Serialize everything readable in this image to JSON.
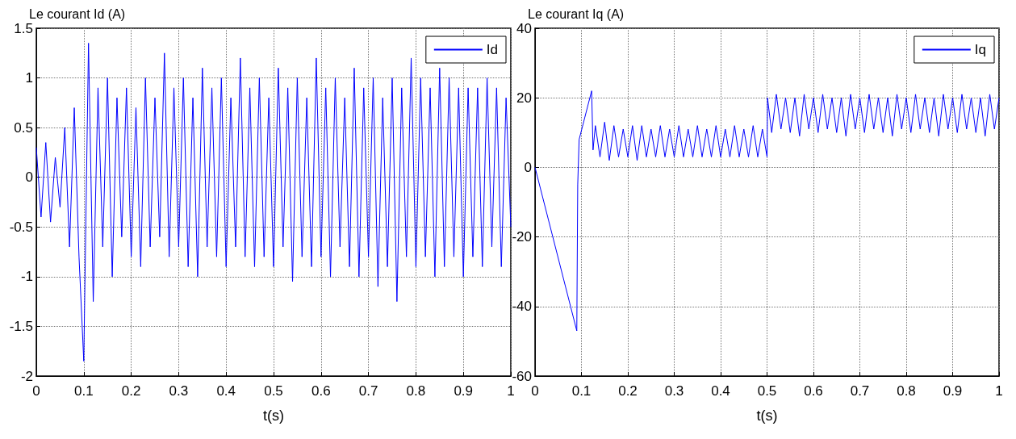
{
  "chart_data": [
    {
      "type": "line",
      "title": "Le courant Id (A)",
      "xlabel": "t(s)",
      "xlim": [
        0,
        1
      ],
      "xticks": [
        0,
        0.1,
        0.2,
        0.3,
        0.4,
        0.5,
        0.6,
        0.7,
        0.8,
        0.9,
        1
      ],
      "ylim": [
        -2,
        1.5
      ],
      "yticks": [
        -2,
        -1.5,
        -1,
        -0.5,
        0,
        0.5,
        1,
        1.5
      ],
      "grid": true,
      "legend": "top right",
      "marker": "none",
      "line_style": "solid",
      "series": [
        {
          "name": "Id",
          "color": "#0000ff",
          "x": [
            0,
            0.01,
            0.02,
            0.03,
            0.04,
            0.05,
            0.06,
            0.07,
            0.08,
            0.09,
            0.1,
            0.11,
            0.12,
            0.13,
            0.14,
            0.15,
            0.16,
            0.17,
            0.18,
            0.19,
            0.2,
            0.21,
            0.22,
            0.23,
            0.24,
            0.25,
            0.26,
            0.27,
            0.28,
            0.29,
            0.3,
            0.31,
            0.32,
            0.33,
            0.34,
            0.35,
            0.36,
            0.37,
            0.38,
            0.39,
            0.4,
            0.41,
            0.42,
            0.43,
            0.44,
            0.45,
            0.46,
            0.47,
            0.48,
            0.49,
            0.5,
            0.51,
            0.52,
            0.53,
            0.54,
            0.55,
            0.56,
            0.57,
            0.58,
            0.59,
            0.6,
            0.61,
            0.62,
            0.63,
            0.64,
            0.65,
            0.66,
            0.67,
            0.68,
            0.69,
            0.7,
            0.71,
            0.72,
            0.73,
            0.74,
            0.75,
            0.76,
            0.77,
            0.78,
            0.79,
            0.8,
            0.81,
            0.82,
            0.83,
            0.84,
            0.85,
            0.86,
            0.87,
            0.88,
            0.89,
            0.9,
            0.91,
            0.92,
            0.93,
            0.94,
            0.95,
            0.96,
            0.97,
            0.98,
            0.99,
            1
          ],
          "values": [
            0.3,
            -0.4,
            0.35,
            -0.45,
            0.2,
            -0.3,
            0.5,
            -0.7,
            0.7,
            -0.8,
            -1.85,
            1.35,
            -1.25,
            0.9,
            -0.7,
            1.0,
            -1.0,
            0.8,
            -0.6,
            0.9,
            -0.8,
            0.7,
            -0.9,
            1.0,
            -0.7,
            0.8,
            -0.6,
            1.25,
            -0.8,
            0.9,
            -0.7,
            1.0,
            -0.9,
            0.8,
            -1.0,
            1.1,
            -0.7,
            0.9,
            -0.8,
            1.0,
            -0.9,
            0.8,
            -0.7,
            1.2,
            -0.8,
            0.9,
            -0.9,
            1.0,
            -0.8,
            0.8,
            -0.9,
            1.1,
            -0.7,
            0.9,
            -1.05,
            1.0,
            -0.8,
            0.8,
            -0.9,
            1.2,
            -0.8,
            0.9,
            -1.0,
            1.0,
            -0.7,
            0.8,
            -0.9,
            1.1,
            -1.0,
            0.9,
            -0.8,
            1.0,
            -1.1,
            0.8,
            -0.9,
            1.0,
            -1.25,
            0.9,
            -0.8,
            1.2,
            -0.9,
            1.0,
            -0.8,
            0.9,
            -1.0,
            1.1,
            -0.9,
            1.0,
            -0.8,
            0.9,
            -1.0,
            0.9,
            -0.8,
            0.9,
            -0.9,
            1.0,
            -0.7,
            0.9,
            -0.9,
            0.8,
            -0.5
          ]
        }
      ]
    },
    {
      "type": "line",
      "title": "Le courant Iq (A)",
      "xlabel": "t(s)",
      "xlim": [
        0,
        1
      ],
      "xticks": [
        0,
        0.1,
        0.2,
        0.3,
        0.4,
        0.5,
        0.6,
        0.7,
        0.8,
        0.9,
        1
      ],
      "ylim": [
        -60,
        40
      ],
      "yticks": [
        -60,
        -40,
        -20,
        0,
        20,
        40
      ],
      "grid": true,
      "legend": "top right",
      "marker": "none",
      "line_style": "solid",
      "series": [
        {
          "name": "Iq",
          "color": "#0000ff",
          "x": [
            0,
            0.09,
            0.092,
            0.095,
            0.122,
            0.125,
            0.13,
            0.14,
            0.15,
            0.16,
            0.17,
            0.18,
            0.19,
            0.2,
            0.21,
            0.22,
            0.23,
            0.24,
            0.25,
            0.26,
            0.27,
            0.28,
            0.29,
            0.3,
            0.31,
            0.32,
            0.33,
            0.34,
            0.35,
            0.36,
            0.37,
            0.38,
            0.39,
            0.4,
            0.41,
            0.42,
            0.43,
            0.44,
            0.45,
            0.46,
            0.47,
            0.48,
            0.49,
            0.5,
            0.501,
            0.51,
            0.52,
            0.53,
            0.54,
            0.55,
            0.56,
            0.57,
            0.58,
            0.59,
            0.6,
            0.61,
            0.62,
            0.63,
            0.64,
            0.65,
            0.66,
            0.67,
            0.68,
            0.69,
            0.7,
            0.71,
            0.72,
            0.73,
            0.74,
            0.75,
            0.76,
            0.77,
            0.78,
            0.79,
            0.8,
            0.81,
            0.82,
            0.83,
            0.84,
            0.85,
            0.86,
            0.87,
            0.88,
            0.89,
            0.9,
            0.91,
            0.92,
            0.93,
            0.94,
            0.95,
            0.96,
            0.97,
            0.98,
            0.99,
            1
          ],
          "values": [
            0,
            -47,
            -5,
            8,
            22,
            5,
            12,
            3,
            13,
            2,
            12,
            3,
            11,
            3,
            12,
            2,
            12,
            3,
            11,
            3,
            12,
            3,
            11,
            3,
            12,
            3,
            11,
            3,
            12,
            3,
            11,
            3,
            12,
            3,
            11,
            3,
            12,
            3,
            11,
            3,
            12,
            3,
            11,
            3,
            20,
            10,
            21,
            11,
            20,
            10,
            20,
            9,
            21,
            11,
            20,
            10,
            21,
            11,
            20,
            10,
            20,
            9,
            21,
            11,
            20,
            10,
            21,
            11,
            20,
            10,
            20,
            9,
            21,
            11,
            20,
            10,
            21,
            11,
            20,
            10,
            20,
            9,
            21,
            11,
            20,
            10,
            21,
            11,
            20,
            10,
            20,
            9,
            21,
            11,
            20
          ]
        }
      ]
    }
  ]
}
